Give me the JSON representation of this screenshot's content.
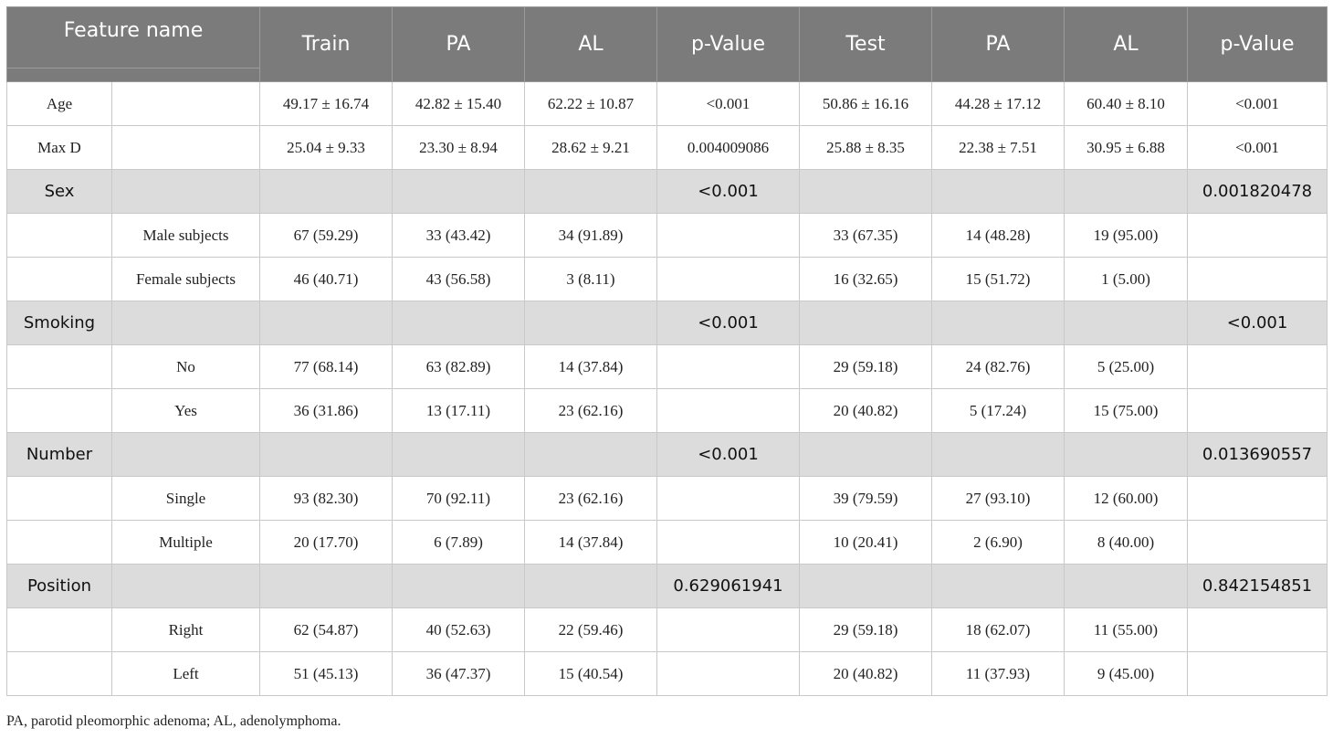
{
  "header": {
    "feature": "Feature name",
    "cols": [
      "Train",
      "PA",
      "AL",
      "p-Value",
      "Test",
      "PA",
      "AL",
      "p-Value"
    ]
  },
  "rows": [
    {
      "type": "data",
      "label": "Age",
      "sub": "",
      "values": [
        "49.17 ± 16.74",
        "42.82 ± 15.40",
        "62.22 ± 10.87",
        "<0.001",
        "50.86 ± 16.16",
        "44.28 ± 17.12",
        "60.40 ± 8.10",
        "<0.001"
      ]
    },
    {
      "type": "data",
      "label": "Max D",
      "sub": "",
      "values": [
        "25.04 ± 9.33",
        "23.30 ± 8.94",
        "28.62 ± 9.21",
        "0.004009086",
        "25.88 ± 8.35",
        "22.38 ± 7.51",
        "30.95 ± 6.88",
        "<0.001"
      ]
    },
    {
      "type": "group",
      "label": "Sex",
      "sub": "",
      "values": [
        "",
        "",
        "",
        "<0.001",
        "",
        "",
        "",
        "0.001820478"
      ]
    },
    {
      "type": "data",
      "label": "",
      "sub": "Male subjects",
      "values": [
        "67 (59.29)",
        "33 (43.42)",
        "34 (91.89)",
        "",
        "33 (67.35)",
        "14 (48.28)",
        "19 (95.00)",
        ""
      ]
    },
    {
      "type": "data",
      "label": "",
      "sub": "Female subjects",
      "values": [
        "46 (40.71)",
        "43 (56.58)",
        "3 (8.11)",
        "",
        "16 (32.65)",
        "15 (51.72)",
        "1 (5.00)",
        ""
      ]
    },
    {
      "type": "group",
      "label": "Smoking",
      "sub": "",
      "values": [
        "",
        "",
        "",
        "<0.001",
        "",
        "",
        "",
        "<0.001"
      ]
    },
    {
      "type": "data",
      "label": "",
      "sub": "No",
      "values": [
        "77 (68.14)",
        "63 (82.89)",
        "14 (37.84)",
        "",
        "29 (59.18)",
        "24 (82.76)",
        "5 (25.00)",
        ""
      ]
    },
    {
      "type": "data",
      "label": "",
      "sub": "Yes",
      "values": [
        "36 (31.86)",
        "13 (17.11)",
        "23 (62.16)",
        "",
        "20 (40.82)",
        "5 (17.24)",
        "15 (75.00)",
        ""
      ]
    },
    {
      "type": "group",
      "label": "Number",
      "sub": "",
      "values": [
        "",
        "",
        "",
        "<0.001",
        "",
        "",
        "",
        "0.013690557"
      ]
    },
    {
      "type": "data",
      "label": "",
      "sub": "Single",
      "values": [
        "93 (82.30)",
        "70 (92.11)",
        "23 (62.16)",
        "",
        "39 (79.59)",
        "27 (93.10)",
        "12 (60.00)",
        ""
      ]
    },
    {
      "type": "data",
      "label": "",
      "sub": "Multiple",
      "values": [
        "20 (17.70)",
        "6 (7.89)",
        "14 (37.84)",
        "",
        "10 (20.41)",
        "2 (6.90)",
        "8 (40.00)",
        ""
      ]
    },
    {
      "type": "group",
      "label": "Position",
      "sub": "",
      "values": [
        "",
        "",
        "",
        "0.629061941",
        "",
        "",
        "",
        "0.842154851"
      ]
    },
    {
      "type": "data",
      "label": "",
      "sub": "Right",
      "values": [
        "62 (54.87)",
        "40 (52.63)",
        "22 (59.46)",
        "",
        "29 (59.18)",
        "18 (62.07)",
        "11 (55.00)",
        ""
      ]
    },
    {
      "type": "data",
      "label": "",
      "sub": "Left",
      "values": [
        "51 (45.13)",
        "36 (47.37)",
        "15 (40.54)",
        "",
        "20 (40.82)",
        "11 (37.93)",
        "9 (45.00)",
        ""
      ]
    }
  ],
  "footnote": "PA, parotid pleomorphic adenoma; AL, adenolymphoma.",
  "colors": {
    "header_bg": "#7b7b7b",
    "group_bg": "#dcdcdc"
  }
}
